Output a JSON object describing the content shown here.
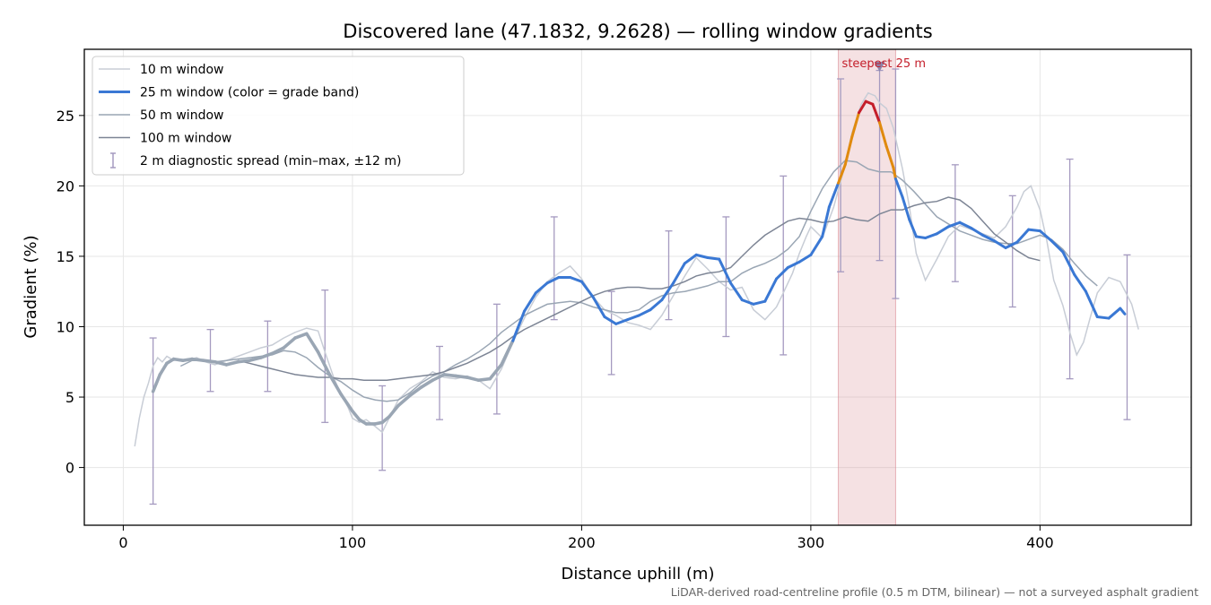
{
  "chart_data": {
    "type": "line",
    "title": "Discovered lane (47.1832, 9.2628) — rolling window gradients",
    "xlabel": "Distance uphill (m)",
    "ylabel": "Gradient (%)",
    "xlim": [
      -17,
      466
    ],
    "ylim": [
      -4.1,
      29.7
    ],
    "xticks": [
      0,
      100,
      200,
      300,
      400
    ],
    "yticks": [
      0,
      5,
      10,
      15,
      20,
      25
    ],
    "grid": true,
    "legend_position": "top-left",
    "footnote": "LiDAR-derived road-centreline profile (0.5 m DTM, bilinear) — not a surveyed asphalt gradient",
    "highlight": {
      "x_range": [
        312,
        337
      ],
      "label": "steepest 25 m",
      "marker_x": 330,
      "marker_y": 28.5
    },
    "grade_band_colors": {
      "base": "#3a78d4",
      "steep": "#e08a0f",
      "very_steep": "#c41e2a",
      "low": "#9aa6b4"
    },
    "grade_band_thresholds": [
      10,
      20,
      25
    ],
    "series": [
      {
        "name": "10 m window",
        "color": "#c8cdd6",
        "x": [
          5,
          7,
          9,
          11,
          13,
          15,
          17,
          19,
          22,
          25,
          28,
          32,
          36,
          40,
          45,
          50,
          55,
          60,
          65,
          70,
          75,
          80,
          85,
          88,
          92,
          95,
          98,
          100,
          103,
          106,
          110,
          113,
          116,
          120,
          125,
          130,
          135,
          140,
          145,
          150,
          155,
          160,
          165,
          170,
          175,
          180,
          185,
          190,
          195,
          200,
          205,
          210,
          215,
          220,
          225,
          230,
          235,
          240,
          245,
          250,
          255,
          260,
          265,
          270,
          275,
          280,
          285,
          288,
          292,
          295,
          298,
          300,
          305,
          310,
          315,
          318,
          322,
          325,
          328,
          330,
          333,
          336,
          340,
          343,
          346,
          350,
          355,
          360,
          365,
          370,
          375,
          380,
          385,
          390,
          393,
          396,
          400,
          403,
          406,
          410,
          413,
          416,
          419,
          422,
          425,
          430,
          435,
          440,
          443
        ],
        "y": [
          1.5,
          3.5,
          5,
          6,
          7.2,
          7.8,
          7.5,
          7.9,
          7.6,
          7.7,
          7.6,
          7.8,
          7.5,
          7.3,
          7.6,
          7.9,
          8.2,
          8.5,
          8.7,
          9.2,
          9.6,
          9.9,
          9.7,
          8.2,
          6.3,
          5.2,
          4.3,
          3.5,
          3.2,
          3.4,
          2.9,
          2.5,
          3.5,
          4.8,
          5.6,
          6.1,
          6.8,
          6.4,
          6.3,
          6.5,
          6.2,
          5.6,
          7,
          8.9,
          10.6,
          12.1,
          13.2,
          13.8,
          14.3,
          13.4,
          12.1,
          11.2,
          10.8,
          10.3,
          10.1,
          9.8,
          10.8,
          12.2,
          13.6,
          14.9,
          14.1,
          13.2,
          12.6,
          12.8,
          11.2,
          10.5,
          11.4,
          12.4,
          13.8,
          15.2,
          16.4,
          17.1,
          16.3,
          18.5,
          21.5,
          23.8,
          25.8,
          26.6,
          26.4,
          25.9,
          25.5,
          24.1,
          21.2,
          18.5,
          15.2,
          13.3,
          14.8,
          16.4,
          17.2,
          16.9,
          16.6,
          16.3,
          17.1,
          18.5,
          19.6,
          20,
          18.3,
          16.1,
          13.3,
          11.5,
          9.6,
          8,
          8.9,
          10.7,
          12.4,
          13.5,
          13.2,
          11.6,
          9.8
        ]
      },
      {
        "name": "25 m window (color = grade band)",
        "color": "#3a78d4",
        "x": [
          13,
          16,
          19,
          22,
          26,
          30,
          35,
          40,
          45,
          50,
          55,
          60,
          65,
          70,
          75,
          80,
          85,
          90,
          95,
          100,
          103,
          106,
          110,
          113,
          116,
          120,
          125,
          130,
          135,
          140,
          145,
          150,
          155,
          160,
          165,
          170,
          175,
          180,
          185,
          190,
          195,
          200,
          205,
          210,
          215,
          220,
          225,
          230,
          235,
          240,
          245,
          250,
          255,
          260,
          265,
          270,
          275,
          280,
          285,
          290,
          295,
          300,
          305,
          308,
          312,
          315,
          318,
          321,
          324,
          327,
          330,
          333,
          336,
          337,
          340,
          343,
          346,
          350,
          355,
          360,
          365,
          370,
          375,
          380,
          385,
          390,
          395,
          400,
          405,
          410,
          415,
          420,
          425,
          430,
          435,
          437
        ],
        "y": [
          5.4,
          6.6,
          7.4,
          7.7,
          7.6,
          7.7,
          7.6,
          7.5,
          7.3,
          7.5,
          7.6,
          7.8,
          8.1,
          8.5,
          9.2,
          9.5,
          8.2,
          6.6,
          5.2,
          4,
          3.4,
          3.1,
          3.1,
          3.2,
          3.6,
          4.4,
          5.1,
          5.7,
          6.2,
          6.6,
          6.5,
          6.4,
          6.2,
          6.3,
          7.3,
          9,
          11.1,
          12.4,
          13.1,
          13.5,
          13.5,
          13.2,
          12.1,
          10.7,
          10.2,
          10.5,
          10.8,
          11.2,
          11.9,
          13.1,
          14.5,
          15.1,
          14.9,
          14.8,
          13.1,
          11.9,
          11.6,
          11.8,
          13.4,
          14.2,
          14.6,
          15.1,
          16.4,
          18.5,
          20.2,
          21.5,
          23.5,
          25.2,
          26,
          25.8,
          24.5,
          22.8,
          21.3,
          20.5,
          19.2,
          17.6,
          16.4,
          16.3,
          16.6,
          17.1,
          17.4,
          17,
          16.5,
          16.1,
          15.6,
          16,
          16.9,
          16.8,
          16.1,
          15.3,
          13.7,
          12.5,
          10.7,
          10.6,
          11.3,
          10.9
        ]
      },
      {
        "name": "50 m window",
        "color": "#9aa6b4",
        "x": [
          25,
          30,
          35,
          40,
          45,
          50,
          55,
          60,
          65,
          70,
          75,
          80,
          85,
          90,
          95,
          100,
          105,
          110,
          115,
          120,
          125,
          130,
          135,
          140,
          145,
          150,
          155,
          160,
          165,
          170,
          175,
          180,
          185,
          190,
          195,
          200,
          205,
          210,
          215,
          220,
          225,
          230,
          235,
          240,
          245,
          250,
          255,
          260,
          265,
          270,
          275,
          280,
          285,
          290,
          295,
          300,
          305,
          310,
          315,
          320,
          325,
          330,
          335,
          340,
          345,
          350,
          355,
          360,
          365,
          370,
          375,
          380,
          385,
          390,
          395,
          400,
          405,
          410,
          415,
          420,
          425
        ],
        "y": [
          7.2,
          7.6,
          7.6,
          7.5,
          7.6,
          7.7,
          7.8,
          7.9,
          8,
          8.3,
          8.2,
          7.8,
          7.1,
          6.5,
          6.1,
          5.5,
          5,
          4.8,
          4.7,
          4.8,
          5.3,
          6,
          6.5,
          6.8,
          7.3,
          7.7,
          8.2,
          8.8,
          9.6,
          10.2,
          10.8,
          11.2,
          11.6,
          11.7,
          11.8,
          11.7,
          11.4,
          11.2,
          11,
          11,
          11.2,
          11.8,
          12.2,
          12.4,
          12.5,
          12.7,
          12.9,
          13.2,
          13.2,
          13.8,
          14.2,
          14.5,
          14.9,
          15.5,
          16.4,
          18.2,
          19.8,
          21,
          21.8,
          21.7,
          21.2,
          21,
          21,
          20.4,
          19.6,
          18.7,
          17.8,
          17.3,
          16.8,
          16.5,
          16.2,
          16,
          15.9,
          15.9,
          16.2,
          16.5,
          16.2,
          15.5,
          14.5,
          13.6,
          12.9
        ]
      },
      {
        "name": "100 m window",
        "color": "#7d8595",
        "x": [
          50,
          55,
          60,
          65,
          70,
          75,
          80,
          85,
          90,
          95,
          100,
          105,
          110,
          115,
          120,
          125,
          130,
          135,
          140,
          145,
          150,
          155,
          160,
          165,
          170,
          175,
          180,
          185,
          190,
          195,
          200,
          205,
          210,
          215,
          220,
          225,
          230,
          235,
          240,
          245,
          250,
          255,
          260,
          265,
          270,
          275,
          280,
          285,
          290,
          295,
          300,
          305,
          310,
          315,
          320,
          325,
          330,
          335,
          340,
          345,
          350,
          355,
          360,
          365,
          370,
          375,
          380,
          385,
          390,
          395,
          400
        ],
        "y": [
          7.6,
          7.4,
          7.2,
          7,
          6.8,
          6.6,
          6.5,
          6.4,
          6.4,
          6.3,
          6.3,
          6.2,
          6.2,
          6.2,
          6.3,
          6.4,
          6.5,
          6.6,
          6.8,
          7.1,
          7.4,
          7.8,
          8.2,
          8.7,
          9.3,
          9.8,
          10.2,
          10.6,
          11,
          11.4,
          11.8,
          12.2,
          12.5,
          12.7,
          12.8,
          12.8,
          12.7,
          12.7,
          12.9,
          13.2,
          13.6,
          13.8,
          13.9,
          14.2,
          15,
          15.8,
          16.5,
          17,
          17.5,
          17.7,
          17.6,
          17.4,
          17.5,
          17.8,
          17.6,
          17.5,
          18,
          18.3,
          18.3,
          18.6,
          18.8,
          18.9,
          19.2,
          19,
          18.4,
          17.5,
          16.6,
          16,
          15.4,
          14.9,
          14.7
        ]
      },
      {
        "name": "2 m diagnostic spread (min–max, ±12 m)",
        "color": "#a59ac0",
        "x": [
          13,
          38,
          63,
          88,
          113,
          138,
          163,
          188,
          213,
          238,
          263,
          288,
          313,
          330,
          337,
          363,
          388,
          413,
          438
        ],
        "y": [
          5.4,
          7.6,
          7.8,
          8,
          3.1,
          6.6,
          6.4,
          13.3,
          10.3,
          12.4,
          14.9,
          14.1,
          20.3,
          24.6,
          20.4,
          17.3,
          15.8,
          13.7,
          10.8
        ],
        "low": [
          -2.6,
          5.4,
          5.4,
          3.2,
          -0.2,
          3.4,
          3.8,
          10.5,
          6.6,
          10.5,
          9.3,
          8,
          13.9,
          14.7,
          12,
          13.2,
          11.4,
          6.3,
          3.4
        ],
        "high": [
          9.2,
          9.8,
          10.4,
          12.6,
          5.8,
          8.6,
          11.6,
          17.8,
          12.5,
          16.8,
          17.8,
          20.7,
          27.6,
          28.2,
          28.3,
          21.5,
          19.3,
          21.9,
          15.1
        ]
      }
    ]
  }
}
